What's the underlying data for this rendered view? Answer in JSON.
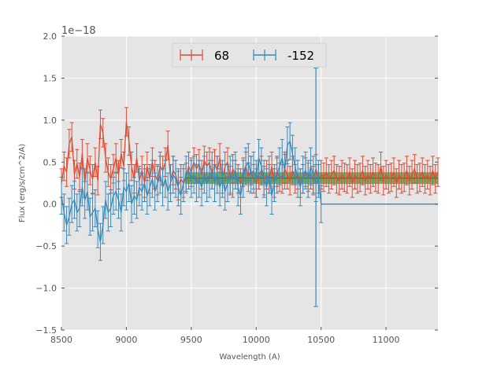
{
  "chart_data": {
    "type": "line",
    "xlabel": "Wavelength (A)",
    "ylabel": "Flux (erg/s/cm^2/A)",
    "y_offset_label": "1e−18",
    "xlim": [
      8500,
      11400
    ],
    "ylim": [
      -1.5,
      2.0
    ],
    "x_ticks": [
      {
        "value": 8500,
        "label": "8500"
      },
      {
        "value": 9000,
        "label": "9000"
      },
      {
        "value": 9500,
        "label": "9500"
      },
      {
        "value": 10000,
        "label": "10000"
      },
      {
        "value": 10500,
        "label": "10500"
      },
      {
        "value": 11000,
        "label": "11000"
      }
    ],
    "y_ticks": [
      {
        "value": -1.5,
        "label": "−1.5"
      },
      {
        "value": -1.0,
        "label": "−1.0"
      },
      {
        "value": -0.5,
        "label": "−0.5"
      },
      {
        "value": 0.0,
        "label": "0.0"
      },
      {
        "value": 0.5,
        "label": "0.5"
      },
      {
        "value": 1.0,
        "label": "1.0"
      },
      {
        "value": 1.5,
        "label": "1.5"
      },
      {
        "value": 2.0,
        "label": "2.0"
      }
    ],
    "grid": true,
    "legend_position": "top-center",
    "band": {
      "x_start": 9450,
      "x_end": 11400,
      "y_low": 0.24,
      "y_high": 0.38,
      "center": 0.31,
      "color": "#66a855",
      "edge_color": "#2d7a2d"
    },
    "series": [
      {
        "name": "68",
        "color": "#e24a33",
        "x": [
          8500,
          8520,
          8540,
          8560,
          8580,
          8600,
          8620,
          8640,
          8660,
          8680,
          8700,
          8720,
          8740,
          8760,
          8780,
          8800,
          8820,
          8840,
          8860,
          8880,
          8900,
          8920,
          8940,
          8960,
          8980,
          9000,
          9020,
          9040,
          9060,
          9080,
          9100,
          9120,
          9140,
          9160,
          9180,
          9200,
          9220,
          9240,
          9260,
          9280,
          9300,
          9320,
          9340,
          9360,
          9380,
          9400,
          9420,
          9440,
          9460,
          9480,
          9500,
          9520,
          9540,
          9560,
          9580,
          9600,
          9620,
          9640,
          9660,
          9680,
          9700,
          9720,
          9740,
          9760,
          9780,
          9800,
          9820,
          9840,
          9860,
          9880,
          9900,
          9920,
          9940,
          9960,
          9980,
          10000,
          10020,
          10040,
          10060,
          10080,
          10100,
          10120,
          10140,
          10160,
          10180,
          10200,
          10220,
          10240,
          10260,
          10280,
          10300,
          10320,
          10340,
          10360,
          10380,
          10400,
          10420,
          10440,
          10460,
          10480,
          10500,
          10520,
          10540,
          10560,
          10580,
          10600,
          10620,
          10640,
          10660,
          10680,
          10700,
          10720,
          10740,
          10760,
          10780,
          10800,
          10820,
          10840,
          10860,
          10880,
          10900,
          10920,
          10940,
          10960,
          10980,
          11000,
          11020,
          11040,
          11060,
          11080,
          11100,
          11120,
          11140,
          11160,
          11180,
          11200,
          11220,
          11240,
          11260,
          11280,
          11300,
          11320,
          11340,
          11360,
          11380,
          11400
        ],
        "y": [
          0.25,
          0.45,
          0.38,
          0.72,
          0.8,
          0.35,
          0.48,
          0.32,
          0.6,
          0.25,
          0.55,
          0.4,
          0.3,
          0.5,
          0.28,
          0.95,
          0.85,
          0.55,
          0.38,
          0.3,
          0.42,
          0.55,
          0.35,
          0.6,
          0.45,
          0.98,
          0.75,
          0.45,
          0.3,
          0.55,
          0.28,
          0.4,
          0.25,
          0.45,
          0.3,
          0.5,
          0.35,
          0.28,
          0.45,
          0.4,
          0.5,
          0.7,
          0.3,
          0.4,
          0.35,
          0.22,
          0.3,
          0.25,
          0.32,
          0.45,
          0.38,
          0.5,
          0.42,
          0.48,
          0.35,
          0.52,
          0.45,
          0.5,
          0.35,
          0.48,
          0.4,
          0.55,
          0.3,
          0.45,
          0.5,
          0.28,
          0.42,
          0.35,
          0.3,
          0.25,
          0.38,
          0.45,
          0.32,
          0.4,
          0.3,
          0.25,
          0.35,
          0.4,
          0.28,
          0.35,
          0.3,
          0.45,
          0.25,
          0.38,
          0.32,
          0.3,
          0.42,
          0.35,
          0.28,
          0.4,
          0.3,
          0.35,
          0.25,
          0.3,
          0.38,
          0.32,
          0.35,
          0.28,
          0.42,
          0.3,
          0.35,
          0.32,
          0.38,
          0.3,
          0.35,
          0.4,
          0.3,
          0.28,
          0.35,
          0.32,
          0.3,
          0.38,
          0.25,
          0.35,
          0.3,
          0.32,
          0.4,
          0.28,
          0.35,
          0.3,
          0.38,
          0.32,
          0.3,
          0.45,
          0.28,
          0.35,
          0.3,
          0.32,
          0.38,
          0.25,
          0.35,
          0.3,
          0.32,
          0.4,
          0.28,
          0.35,
          0.42,
          0.3,
          0.32,
          0.38,
          0.3,
          0.35,
          0.28,
          0.4,
          0.3,
          0.38
        ],
        "err": 0.17
      },
      {
        "name": "-152",
        "color": "#348abd",
        "x": [
          8500,
          8520,
          8540,
          8560,
          8580,
          8600,
          8620,
          8640,
          8660,
          8680,
          8700,
          8720,
          8740,
          8760,
          8780,
          8800,
          8820,
          8840,
          8860,
          8880,
          8900,
          8920,
          8940,
          8960,
          8980,
          9000,
          9020,
          9040,
          9060,
          9080,
          9100,
          9120,
          9140,
          9160,
          9180,
          9200,
          9220,
          9240,
          9260,
          9280,
          9300,
          9320,
          9340,
          9360,
          9380,
          9400,
          9420,
          9440,
          9460,
          9480,
          9500,
          9520,
          9540,
          9560,
          9580,
          9600,
          9620,
          9640,
          9660,
          9680,
          9700,
          9720,
          9740,
          9760,
          9780,
          9800,
          9820,
          9840,
          9860,
          9880,
          9900,
          9920,
          9940,
          9960,
          9980,
          10000,
          10020,
          10040,
          10060,
          10080,
          10100,
          10120,
          10140,
          10160,
          10180,
          10200,
          10220,
          10240,
          10260,
          10280,
          10300,
          10320,
          10340,
          10360,
          10380,
          10400,
          10420,
          10440,
          10460,
          10480,
          10500,
          10550,
          10600,
          10650,
          10700,
          10750,
          10800,
          10850,
          10900,
          10950,
          11000,
          11050,
          11100,
          11150,
          11200,
          11250,
          11300,
          11350,
          11400
        ],
        "y": [
          0.1,
          -0.1,
          -0.25,
          -0.15,
          0.0,
          0.05,
          -0.1,
          -0.05,
          0.2,
          0.05,
          0.15,
          -0.15,
          -0.1,
          -0.05,
          -0.3,
          -0.45,
          -0.25,
          0.05,
          -0.1,
          -0.05,
          0.1,
          0.15,
          0.05,
          -0.1,
          0.2,
          0.15,
          0.25,
          0.0,
          0.1,
          0.05,
          0.2,
          0.15,
          0.25,
          0.1,
          0.2,
          0.3,
          0.15,
          0.25,
          0.35,
          0.2,
          0.3,
          0.15,
          0.25,
          0.35,
          0.3,
          0.2,
          0.1,
          0.25,
          0.35,
          0.4,
          0.3,
          0.35,
          0.25,
          0.3,
          0.2,
          0.35,
          0.25,
          0.3,
          0.4,
          0.25,
          0.35,
          0.2,
          0.3,
          0.15,
          0.25,
          0.35,
          0.3,
          0.4,
          0.2,
          0.1,
          0.3,
          0.45,
          0.5,
          0.35,
          0.4,
          0.3,
          0.55,
          0.45,
          0.3,
          0.2,
          0.35,
          0.1,
          0.25,
          0.35,
          0.45,
          0.55,
          0.4,
          0.7,
          0.75,
          0.6,
          0.45,
          0.3,
          0.2,
          0.35,
          0.4,
          0.3,
          0.45,
          0.35,
          0.25,
          0.3,
          0.0,
          0.0,
          0.0,
          0.0,
          0.0,
          0.0,
          0.0,
          0.0,
          0.0,
          0.0,
          0.0,
          0.0,
          0.0,
          0.0,
          0.0,
          0.0,
          0.0,
          0.0,
          0.0
        ],
        "err": 0.22,
        "big_err_x": 10460,
        "big_err_y": 0.2,
        "big_err": 1.42,
        "err_until_x": 10500
      }
    ]
  }
}
